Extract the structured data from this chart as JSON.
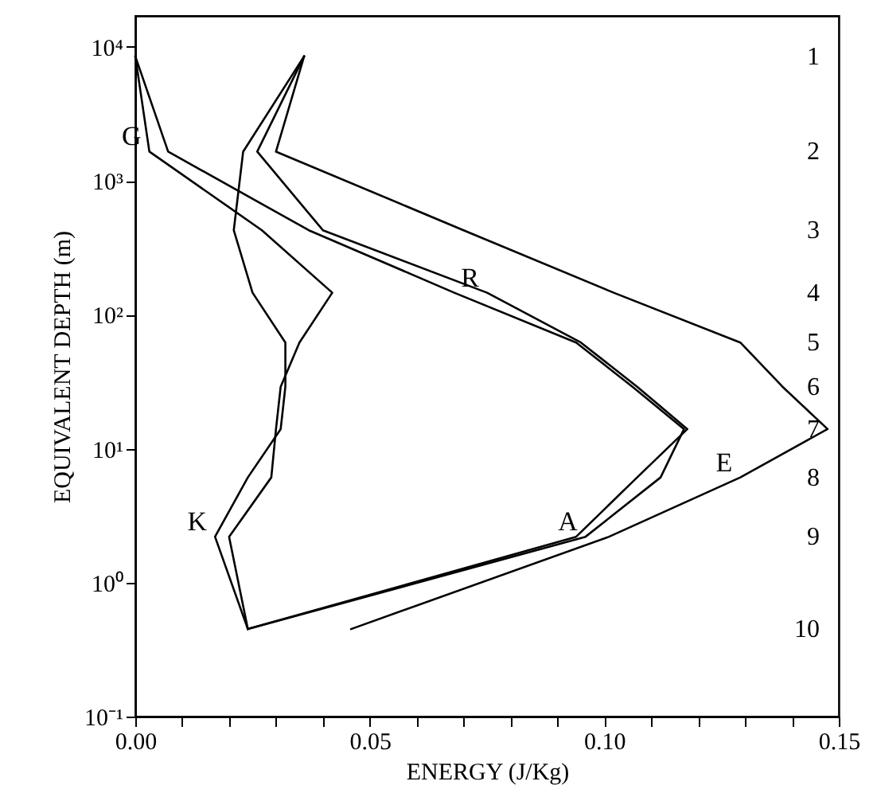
{
  "chart_data": {
    "type": "line",
    "xlabel": "ENERGY (J/Kg)",
    "ylabel": "EQUIVALENT DEPTH (m)",
    "log": "y",
    "xlim": [
      0,
      0.15
    ],
    "ylim": [
      0.1,
      17000
    ],
    "xticks": [
      {
        "value": 0,
        "label": "0.00"
      },
      {
        "value": 0.01,
        "label": null
      },
      {
        "value": 0.02,
        "label": null
      },
      {
        "value": 0.03,
        "label": null
      },
      {
        "value": 0.04,
        "label": null
      },
      {
        "value": 0.05,
        "label": "0.05"
      },
      {
        "value": 0.06,
        "label": null
      },
      {
        "value": 0.07,
        "label": null
      },
      {
        "value": 0.08,
        "label": null
      },
      {
        "value": 0.09,
        "label": null
      },
      {
        "value": 0.1,
        "label": "0.10"
      },
      {
        "value": 0.11,
        "label": null
      },
      {
        "value": 0.12,
        "label": null
      },
      {
        "value": 0.13,
        "label": null
      },
      {
        "value": 0.14,
        "label": null
      },
      {
        "value": 0.15,
        "label": "0.15"
      }
    ],
    "yticks": [
      {
        "value": 0.1,
        "label": "10⁻¹"
      },
      {
        "value": 1,
        "label": "10⁰"
      },
      {
        "value": 10,
        "label": "10¹"
      },
      {
        "value": 100,
        "label": "10²"
      },
      {
        "value": 1000,
        "label": "10³"
      },
      {
        "value": 10000,
        "label": "10⁴"
      }
    ],
    "annotations": [
      "1",
      "2",
      "3",
      "4",
      "5",
      "6",
      "7",
      "8",
      "9",
      "10"
    ],
    "series": [
      {
        "name": "E",
        "color": "#000000",
        "x": [
          0.036,
          0.03,
          0.07,
          0.102,
          0.129,
          0.138,
          0.1476,
          0.129,
          0.101,
          0.046
        ],
        "values": [
          8500,
          1650,
          427,
          146,
          62,
          29,
          14,
          6.1,
          2.2,
          0.45
        ]
      },
      {
        "name": "R",
        "color": "#000000",
        "x": [
          0.036,
          0.026,
          0.04,
          0.075,
          0.095,
          0.107,
          0.1177,
          0.107,
          0.094,
          0.024
        ],
        "values": [
          8500,
          1650,
          427,
          146,
          62,
          29,
          14,
          6.1,
          2.2,
          0.45
        ]
      },
      {
        "name": "A",
        "color": "#000000",
        "x": [
          0.0,
          0.007,
          0.037,
          0.068,
          0.094,
          0.106,
          0.117,
          0.112,
          0.096,
          0.024
        ],
        "values": [
          8500,
          1650,
          427,
          146,
          62,
          29,
          14,
          6.1,
          2.2,
          0.45
        ]
      },
      {
        "name": "G",
        "color": "#000000",
        "x": [
          0.0,
          0.003,
          0.027,
          0.042,
          0.035,
          0.031,
          0.03,
          0.029,
          0.02,
          0.024
        ],
        "values": [
          8500,
          1650,
          427,
          146,
          62,
          29,
          14,
          6.1,
          2.2,
          0.45
        ]
      },
      {
        "name": "K",
        "color": "#000000",
        "x": [
          0.036,
          0.023,
          0.021,
          0.025,
          0.032,
          0.032,
          0.031,
          0.024,
          0.017,
          0.024
        ],
        "values": [
          8500,
          1650,
          427,
          146,
          62,
          29,
          14,
          6.1,
          2.2,
          0.45
        ]
      }
    ]
  }
}
